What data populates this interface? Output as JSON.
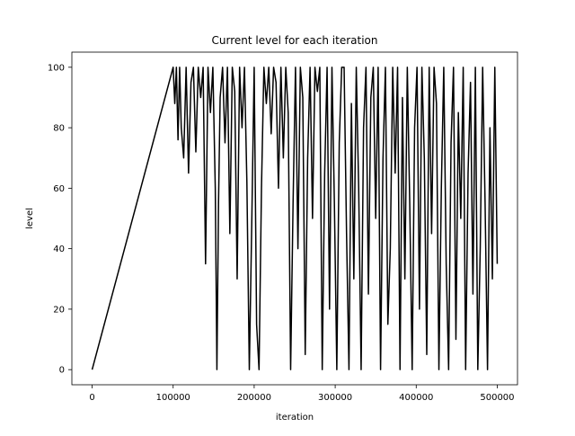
{
  "chart_data": {
    "type": "line",
    "title": "Current level for each iteration",
    "xlabel": "iteration",
    "ylabel": "level",
    "xlim": [
      -25000,
      525000
    ],
    "ylim": [
      -5,
      105
    ],
    "xticks": [
      0,
      100000,
      200000,
      300000,
      400000,
      500000
    ],
    "xtick_labels": [
      "0",
      "100000",
      "200000",
      "300000",
      "400000",
      "500000"
    ],
    "yticks": [
      0,
      20,
      40,
      60,
      80,
      100
    ],
    "ytick_labels": [
      "0",
      "20",
      "40",
      "60",
      "80",
      "100"
    ],
    "grid": false,
    "series": [
      {
        "color": "#000000",
        "x": [
          0,
          100000,
          102000,
          104000,
          106000,
          108000,
          110000,
          113000,
          116000,
          119000,
          122000,
          125000,
          128000,
          131000,
          134000,
          137000,
          140000,
          143000,
          146000,
          149000,
          152000,
          154000,
          156000,
          158000,
          161000,
          164000,
          167000,
          170000,
          173000,
          176000,
          179000,
          182000,
          185000,
          188000,
          191000,
          194000,
          197000,
          200000,
          203000,
          206000,
          209000,
          212000,
          215000,
          218000,
          221000,
          224000,
          227000,
          230000,
          233000,
          236000,
          239000,
          242000,
          245000,
          248000,
          251000,
          254000,
          257000,
          260000,
          263000,
          266000,
          269000,
          272000,
          275000,
          278000,
          281000,
          284000,
          287000,
          290000,
          293000,
          296000,
          299000,
          302000,
          305000,
          308000,
          311000,
          314000,
          317000,
          320000,
          323000,
          326000,
          329000,
          332000,
          335000,
          338000,
          341000,
          344000,
          347000,
          350000,
          353000,
          356000,
          359000,
          362000,
          365000,
          368000,
          371000,
          374000,
          377000,
          380000,
          383000,
          386000,
          389000,
          392000,
          395000,
          398000,
          401000,
          404000,
          407000,
          410000,
          413000,
          416000,
          419000,
          422000,
          425000,
          428000,
          431000,
          434000,
          437000,
          440000,
          443000,
          446000,
          449000,
          452000,
          455000,
          458000,
          461000,
          464000,
          467000,
          470000,
          473000,
          476000,
          479000,
          482000,
          485000,
          488000,
          491000,
          494000,
          497000,
          500000
        ],
        "y": [
          0,
          100,
          88,
          100,
          76,
          100,
          80,
          70,
          100,
          65,
          95,
          100,
          72,
          100,
          90,
          100,
          35,
          100,
          85,
          100,
          60,
          0,
          55,
          90,
          100,
          75,
          100,
          45,
          100,
          92,
          30,
          100,
          80,
          100,
          62,
          0,
          48,
          100,
          15,
          0,
          60,
          100,
          88,
          100,
          78,
          100,
          95,
          60,
          100,
          70,
          100,
          85,
          0,
          55,
          100,
          40,
          100,
          90,
          5,
          70,
          100,
          50,
          100,
          92,
          100,
          0,
          65,
          100,
          20,
          100,
          55,
          0,
          75,
          100,
          100,
          45,
          0,
          88,
          30,
          100,
          60,
          0,
          80,
          100,
          25,
          90,
          100,
          50,
          100,
          0,
          70,
          100,
          15,
          40,
          100,
          65,
          100,
          0,
          90,
          30,
          100,
          55,
          0,
          80,
          100,
          20,
          100,
          70,
          5,
          100,
          45,
          100,
          88,
          0,
          60,
          100,
          35,
          0,
          75,
          100,
          10,
          85,
          50,
          100,
          0,
          65,
          95,
          25,
          100,
          0,
          40,
          100,
          55,
          0,
          80,
          30,
          100,
          35
        ]
      }
    ]
  }
}
